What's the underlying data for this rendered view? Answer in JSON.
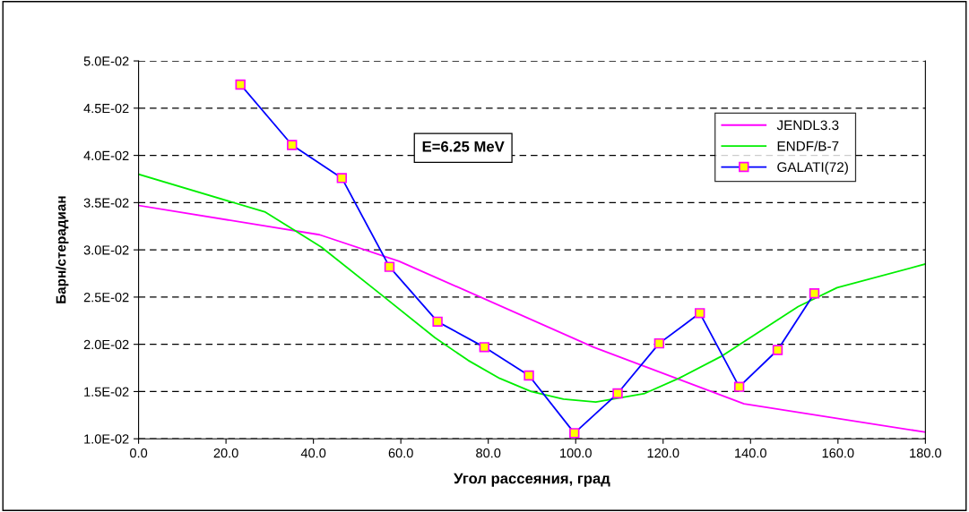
{
  "chart_data": {
    "type": "line",
    "xlabel": "Угол рассеяния, град",
    "ylabel": "Барн/стерадиан",
    "annotations": [
      "E=6.25 MeV"
    ],
    "series": [
      {
        "name": "JENDL3.3",
        "color": "#ff00ff",
        "x": [
          0,
          41.4,
          59.6,
          104.1,
          138.5,
          180
        ],
        "values": [
          0.0347,
          0.0316,
          0.0288,
          0.0197,
          0.0137,
          0.0107
        ]
      },
      {
        "name": "ENDF/B-7",
        "color": "#00ee00",
        "x": [
          0,
          29.0,
          41.8,
          56.2,
          67.8,
          75.4,
          82.6,
          89.8,
          97.2,
          104.6,
          115.8,
          123.6,
          133.2,
          150.9,
          159.8,
          180
        ],
        "values": [
          0.038,
          0.034,
          0.0303,
          0.025,
          0.0207,
          0.0183,
          0.0164,
          0.015,
          0.0142,
          0.0139,
          0.0148,
          0.0164,
          0.0187,
          0.024,
          0.026,
          0.0285
        ]
      },
      {
        "name": "GALATI(72)",
        "color": "#0000ff",
        "marker": "square",
        "x": [
          23.3,
          35.1,
          46.5,
          57.4,
          68.4,
          79.1,
          89.3,
          99.7,
          109.6,
          119.1,
          128.4,
          137.4,
          146.2,
          154.6
        ],
        "values": [
          0.0475,
          0.0411,
          0.0376,
          0.0282,
          0.0224,
          0.0197,
          0.0167,
          0.0106,
          0.0148,
          0.0201,
          0.0233,
          0.0155,
          0.0194,
          0.0254
        ]
      }
    ],
    "xlim": [
      0,
      180
    ],
    "xticks": [
      {
        "value": 0,
        "label": "0.0"
      },
      {
        "value": 20,
        "label": "20.0"
      },
      {
        "value": 40,
        "label": "40.0"
      },
      {
        "value": 60,
        "label": "60.0"
      },
      {
        "value": 80,
        "label": "80.0"
      },
      {
        "value": 100,
        "label": "100.0"
      },
      {
        "value": 120,
        "label": "120.0"
      },
      {
        "value": 140,
        "label": "140.0"
      },
      {
        "value": 160,
        "label": "160.0"
      },
      {
        "value": 180,
        "label": "180.0"
      }
    ],
    "ylim": [
      0.01,
      0.05
    ],
    "yticks": [
      {
        "value": 0.01,
        "label": "1.0E-02"
      },
      {
        "value": 0.015,
        "label": "1.5E-02"
      },
      {
        "value": 0.02,
        "label": "2.0E-02"
      },
      {
        "value": 0.025,
        "label": "2.5E-02"
      },
      {
        "value": 0.03,
        "label": "3.0E-02"
      },
      {
        "value": 0.035,
        "label": "3.5E-02"
      },
      {
        "value": 0.04,
        "label": "4.0E-02"
      },
      {
        "value": 0.045,
        "label": "4.5E-02"
      },
      {
        "value": 0.05,
        "label": "5.0E-02"
      }
    ],
    "grid": "y",
    "legend": "top right",
    "line_style": "solid"
  }
}
